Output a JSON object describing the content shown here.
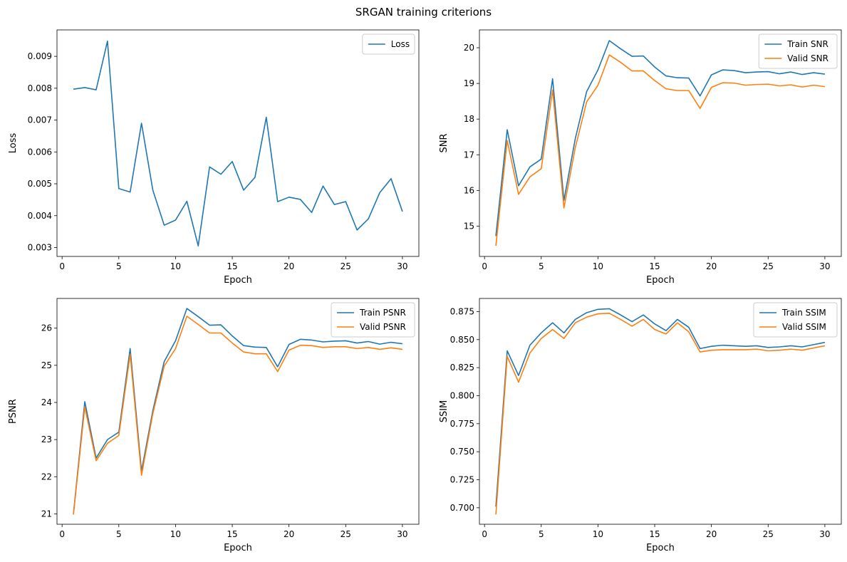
{
  "figure": {
    "title": "SRGAN training criterions"
  },
  "colors": {
    "train": "#1f77b4",
    "valid": "#ff7f0e"
  },
  "chart_data": [
    {
      "type": "line",
      "xlabel": "Epoch",
      "ylabel": "Loss",
      "xlim": [
        -0.45,
        31.45
      ],
      "ylim": [
        0.00272,
        0.00983
      ],
      "xticks": [
        0,
        5,
        10,
        15,
        20,
        25,
        30
      ],
      "yticks": [
        0.003,
        0.004,
        0.005,
        0.006,
        0.007,
        0.008,
        0.009
      ],
      "ytick_labels": [
        "0.003",
        "0.004",
        "0.005",
        "0.006",
        "0.007",
        "0.008",
        "0.009"
      ],
      "legend": "upper right",
      "grid": false,
      "x": [
        1,
        2,
        3,
        4,
        5,
        6,
        7,
        8,
        9,
        10,
        11,
        12,
        13,
        14,
        15,
        16,
        17,
        18,
        19,
        20,
        21,
        22,
        23,
        24,
        25,
        26,
        27,
        28,
        29,
        30
      ],
      "series": [
        {
          "name": "Loss",
          "color": "#1f77b4",
          "values": [
            0.00797,
            0.00802,
            0.00795,
            0.00948,
            0.00485,
            0.00474,
            0.0069,
            0.0048,
            0.0037,
            0.00386,
            0.00445,
            0.00305,
            0.00553,
            0.0053,
            0.0057,
            0.0048,
            0.0052,
            0.00709,
            0.00444,
            0.00458,
            0.00451,
            0.0041,
            0.00493,
            0.00435,
            0.00444,
            0.00355,
            0.0039,
            0.00472,
            0.00516,
            0.00413
          ]
        }
      ]
    },
    {
      "type": "line",
      "xlabel": "Epoch",
      "ylabel": "SNR",
      "xlim": [
        -0.45,
        31.45
      ],
      "ylim": [
        14.15,
        20.5
      ],
      "xticks": [
        0,
        5,
        10,
        15,
        20,
        25,
        30
      ],
      "yticks": [
        15,
        16,
        17,
        18,
        19,
        20
      ],
      "ytick_labels": [
        "15",
        "16",
        "17",
        "18",
        "19",
        "20"
      ],
      "legend": "upper right",
      "grid": false,
      "x": [
        1,
        2,
        3,
        4,
        5,
        6,
        7,
        8,
        9,
        10,
        11,
        12,
        13,
        14,
        15,
        16,
        17,
        18,
        19,
        20,
        21,
        22,
        23,
        24,
        25,
        26,
        27,
        28,
        29,
        30
      ],
      "series": [
        {
          "name": "Train SNR",
          "color": "#1f77b4",
          "values": [
            14.72,
            17.7,
            16.13,
            16.66,
            16.88,
            19.13,
            15.72,
            17.45,
            18.77,
            19.38,
            20.2,
            19.97,
            19.76,
            19.77,
            19.46,
            19.21,
            19.16,
            19.15,
            18.65,
            19.24,
            19.38,
            19.36,
            19.3,
            19.32,
            19.33,
            19.27,
            19.32,
            19.25,
            19.3,
            19.26
          ]
        },
        {
          "name": "Valid SNR",
          "color": "#ff7f0e",
          "values": [
            14.45,
            17.4,
            15.89,
            16.38,
            16.61,
            18.81,
            15.51,
            17.2,
            18.48,
            18.95,
            19.8,
            19.59,
            19.35,
            19.35,
            19.08,
            18.85,
            18.8,
            18.8,
            18.3,
            18.89,
            19.02,
            19.01,
            18.95,
            18.97,
            18.98,
            18.93,
            18.96,
            18.9,
            18.95,
            18.91
          ]
        }
      ]
    },
    {
      "type": "line",
      "xlabel": "Epoch",
      "ylabel": "PSNR",
      "xlim": [
        -0.45,
        31.45
      ],
      "ylim": [
        20.72,
        26.8
      ],
      "xticks": [
        0,
        5,
        10,
        15,
        20,
        25,
        30
      ],
      "yticks": [
        21,
        22,
        23,
        24,
        25,
        26
      ],
      "ytick_labels": [
        "21",
        "22",
        "23",
        "24",
        "25",
        "26"
      ],
      "legend": "upper right",
      "grid": false,
      "x": [
        1,
        2,
        3,
        4,
        5,
        6,
        7,
        8,
        9,
        10,
        11,
        12,
        13,
        14,
        15,
        16,
        17,
        18,
        19,
        20,
        21,
        22,
        23,
        24,
        25,
        26,
        27,
        28,
        29,
        30
      ],
      "series": [
        {
          "name": "Train PSNR",
          "color": "#1f77b4",
          "values": [
            21.0,
            24.02,
            22.5,
            23.0,
            23.2,
            25.45,
            22.15,
            23.78,
            25.1,
            25.66,
            26.53,
            26.31,
            26.08,
            26.09,
            25.79,
            25.53,
            25.49,
            25.48,
            24.96,
            25.56,
            25.7,
            25.68,
            25.63,
            25.65,
            25.66,
            25.6,
            25.64,
            25.57,
            25.62,
            25.58
          ]
        },
        {
          "name": "Valid PSNR",
          "color": "#ff7f0e",
          "values": [
            20.98,
            23.88,
            22.43,
            22.9,
            23.11,
            25.3,
            22.04,
            23.7,
            24.98,
            25.45,
            26.32,
            26.1,
            25.87,
            25.87,
            25.6,
            25.36,
            25.31,
            25.31,
            24.83,
            25.41,
            25.54,
            25.53,
            25.48,
            25.5,
            25.5,
            25.45,
            25.48,
            25.43,
            25.47,
            25.43
          ]
        }
      ]
    },
    {
      "type": "line",
      "xlabel": "Epoch",
      "ylabel": "SSIM",
      "xlim": [
        -0.45,
        31.45
      ],
      "ylim": [
        0.6853,
        0.8867
      ],
      "xticks": [
        0,
        5,
        10,
        15,
        20,
        25,
        30
      ],
      "yticks": [
        0.7,
        0.725,
        0.75,
        0.775,
        0.8,
        0.825,
        0.85,
        0.875
      ],
      "ytick_labels": [
        "0.700",
        "0.725",
        "0.750",
        "0.775",
        "0.800",
        "0.825",
        "0.850",
        "0.875"
      ],
      "legend": "upper right",
      "grid": false,
      "x": [
        1,
        2,
        3,
        4,
        5,
        6,
        7,
        8,
        9,
        10,
        11,
        12,
        13,
        14,
        15,
        16,
        17,
        18,
        19,
        20,
        21,
        22,
        23,
        24,
        25,
        26,
        27,
        28,
        29,
        30
      ],
      "series": [
        {
          "name": "Train SSIM",
          "color": "#1f77b4",
          "values": [
            0.701,
            0.84,
            0.818,
            0.845,
            0.856,
            0.865,
            0.856,
            0.868,
            0.874,
            0.877,
            0.8775,
            0.872,
            0.866,
            0.872,
            0.864,
            0.858,
            0.868,
            0.861,
            0.842,
            0.844,
            0.845,
            0.8445,
            0.844,
            0.8445,
            0.843,
            0.8435,
            0.8445,
            0.8435,
            0.8455,
            0.8475
          ]
        },
        {
          "name": "Valid SSIM",
          "color": "#ff7f0e",
          "values": [
            0.694,
            0.835,
            0.812,
            0.838,
            0.851,
            0.859,
            0.851,
            0.865,
            0.87,
            0.873,
            0.8735,
            0.868,
            0.862,
            0.868,
            0.859,
            0.855,
            0.865,
            0.857,
            0.839,
            0.8405,
            0.841,
            0.841,
            0.841,
            0.8415,
            0.84,
            0.8405,
            0.8415,
            0.8405,
            0.8425,
            0.8445
          ]
        }
      ]
    }
  ]
}
